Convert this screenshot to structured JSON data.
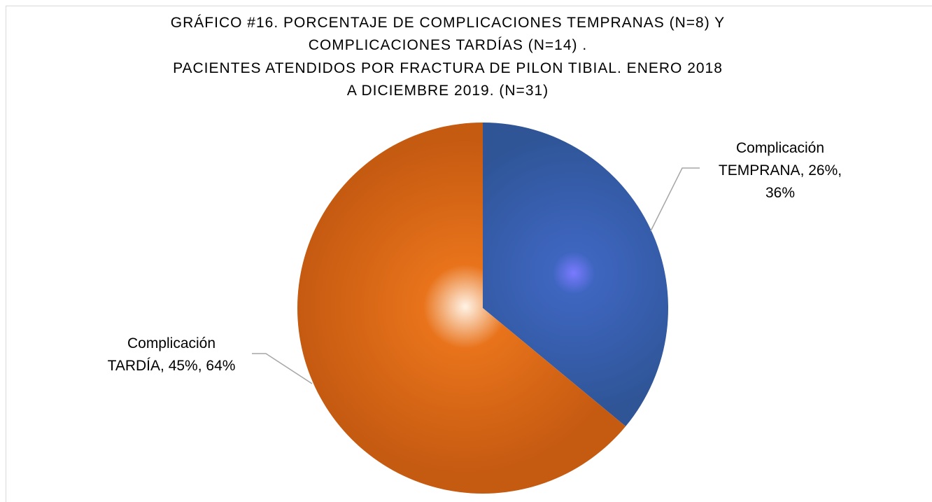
{
  "chart_data": {
    "type": "pie",
    "title": [
      "GRÁFICO #16. PORCENTAJE DE COMPLICACIONES TEMPRANAS (N=8) Y",
      "COMPLICACIONES TARDÍAS (N=14) .",
      "PACIENTES ATENDIDOS POR FRACTURA DE PILON TIBIAL. ENERO 2018",
      "A DICIEMBRE 2019. (N=31)"
    ],
    "categories": [
      "Complicación TEMPRANA",
      "Complicación TARDÍA"
    ],
    "values": [
      36,
      64
    ],
    "value_labels": [
      "36%",
      "64%"
    ],
    "secondary_values": [
      26,
      45
    ],
    "secondary_value_labels": [
      "26%",
      "45%"
    ],
    "colors": [
      "#2f5597",
      "#c55a11"
    ]
  }
}
